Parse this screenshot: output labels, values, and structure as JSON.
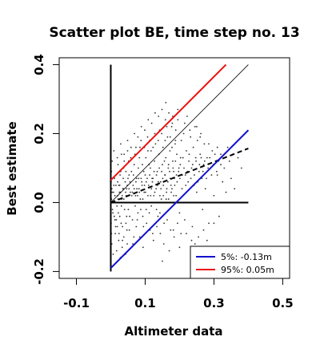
{
  "chart_data": {
    "type": "scatter",
    "title": "Scatter plot BE, time step no. 13",
    "xlabel": "Altimeter data",
    "ylabel": "Best estimate",
    "xlim": [
      -0.15,
      0.52
    ],
    "ylim": [
      -0.22,
      0.42
    ],
    "xticks": [
      -0.1,
      0.1,
      0.3,
      0.5
    ],
    "xtick_labels": [
      "-0.1",
      "0.1",
      "0.3",
      "0.5"
    ],
    "yticks": [
      -0.2,
      0.0,
      0.2,
      0.4
    ],
    "ytick_labels": [
      "-0.2",
      "0.0",
      "0.2",
      "0.4"
    ],
    "lines": [
      {
        "id": "vertical-axis-line",
        "color": "#000000",
        "dash": "solid",
        "x": [
          0.0,
          0.0
        ],
        "y": [
          -0.2,
          0.4
        ]
      },
      {
        "id": "horizontal-zero-line",
        "color": "#000000",
        "dash": "solid",
        "x": [
          0.0,
          0.4
        ],
        "y": [
          0.0,
          0.0
        ]
      },
      {
        "id": "identity-line",
        "color": "#000000",
        "dash": "solid",
        "thin": true,
        "x": [
          0.0,
          0.4
        ],
        "y": [
          0.0,
          0.4
        ]
      },
      {
        "id": "regression-line",
        "color": "#000000",
        "dash": "dashed",
        "x": [
          0.0,
          0.4
        ],
        "y": [
          0.0,
          0.157
        ]
      },
      {
        "id": "percentile-95-line",
        "color": "#ee1111",
        "dash": "solid",
        "x": [
          0.0,
          0.335
        ],
        "y": [
          0.065,
          0.4
        ]
      },
      {
        "id": "percentile-5-line",
        "color": "#1111cc",
        "dash": "solid",
        "x": [
          0.0,
          0.4
        ],
        "y": [
          -0.19,
          0.21
        ]
      }
    ],
    "legend": {
      "position": "bottom-right",
      "entries": [
        {
          "label": "5%: -0.13m",
          "color": "#1111cc"
        },
        {
          "label": "95%:  0.05m",
          "color": "#ee1111"
        }
      ]
    },
    "points": [
      [
        0.002,
        0.01
      ],
      [
        0.005,
        -0.02
      ],
      [
        0.008,
        0.03
      ],
      [
        0.003,
        0.04
      ],
      [
        0.01,
        -0.04
      ],
      [
        0.012,
        0.02
      ],
      [
        0.015,
        0.05
      ],
      [
        0.018,
        -0.01
      ],
      [
        0.02,
        0.06
      ],
      [
        0.022,
        -0.03
      ],
      [
        0.025,
        0.03
      ],
      [
        0.027,
        0.08
      ],
      [
        0.03,
        -0.06
      ],
      [
        0.032,
        0.01
      ],
      [
        0.035,
        0.04
      ],
      [
        0.037,
        0.1
      ],
      [
        0.04,
        -0.02
      ],
      [
        0.042,
        0.06
      ],
      [
        0.045,
        0.02
      ],
      [
        0.047,
        -0.08
      ],
      [
        0.05,
        0.07
      ],
      [
        0.052,
        0.12
      ],
      [
        0.055,
        -0.04
      ],
      [
        0.057,
        0.03
      ],
      [
        0.06,
        0.09
      ],
      [
        0.062,
        0.0
      ],
      [
        0.065,
        0.05
      ],
      [
        0.067,
        -0.1
      ],
      [
        0.07,
        0.14
      ],
      [
        0.072,
        0.02
      ],
      [
        0.075,
        0.07
      ],
      [
        0.077,
        -0.05
      ],
      [
        0.08,
        0.1
      ],
      [
        0.082,
        0.04
      ],
      [
        0.085,
        0.16
      ],
      [
        0.087,
        -0.02
      ],
      [
        0.09,
        0.06
      ],
      [
        0.092,
        0.11
      ],
      [
        0.095,
        -0.07
      ],
      [
        0.097,
        0.03
      ],
      [
        0.1,
        0.08
      ],
      [
        0.102,
        0.13
      ],
      [
        0.105,
        0.0
      ],
      [
        0.107,
        0.19
      ],
      [
        0.11,
        0.05
      ],
      [
        0.112,
        -0.03
      ],
      [
        0.115,
        0.1
      ],
      [
        0.117,
        0.15
      ],
      [
        0.12,
        0.07
      ],
      [
        0.122,
        -0.09
      ],
      [
        0.125,
        0.02
      ],
      [
        0.127,
        0.12
      ],
      [
        0.13,
        0.17
      ],
      [
        0.132,
        0.04
      ],
      [
        0.135,
        0.09
      ],
      [
        0.137,
        -0.04
      ],
      [
        0.14,
        0.14
      ],
      [
        0.142,
        0.21
      ],
      [
        0.145,
        0.06
      ],
      [
        0.147,
        0.01
      ],
      [
        0.15,
        0.11
      ],
      [
        0.152,
        0.16
      ],
      [
        0.155,
        -0.06
      ],
      [
        0.157,
        0.08
      ],
      [
        0.16,
        0.13
      ],
      [
        0.162,
        0.03
      ],
      [
        0.165,
        0.19
      ],
      [
        0.167,
        0.1
      ],
      [
        0.17,
        -0.02
      ],
      [
        0.172,
        0.15
      ],
      [
        0.175,
        0.05
      ],
      [
        0.177,
        0.22
      ],
      [
        0.18,
        0.12
      ],
      [
        0.182,
        -0.08
      ],
      [
        0.185,
        0.07
      ],
      [
        0.187,
        0.17
      ],
      [
        0.19,
        0.02
      ],
      [
        0.192,
        0.14
      ],
      [
        0.195,
        0.24
      ],
      [
        0.197,
        0.09
      ],
      [
        0.2,
        -0.03
      ],
      [
        0.202,
        0.11
      ],
      [
        0.205,
        0.18
      ],
      [
        0.207,
        0.04
      ],
      [
        0.21,
        0.13
      ],
      [
        0.212,
        0.2
      ],
      [
        0.215,
        -0.05
      ],
      [
        0.217,
        0.08
      ],
      [
        0.22,
        0.15
      ],
      [
        0.222,
        0.25
      ],
      [
        0.225,
        0.06
      ],
      [
        0.227,
        0.12
      ],
      [
        0.23,
        0.0
      ],
      [
        0.232,
        0.19
      ],
      [
        0.235,
        0.1
      ],
      [
        0.237,
        -0.07
      ],
      [
        0.24,
        0.16
      ],
      [
        0.242,
        0.05
      ],
      [
        0.245,
        0.22
      ],
      [
        0.247,
        0.13
      ],
      [
        0.25,
        0.03
      ],
      [
        0.252,
        0.18
      ],
      [
        0.255,
        -0.1
      ],
      [
        0.257,
        0.09
      ],
      [
        0.26,
        0.14
      ],
      [
        0.262,
        0.2
      ],
      [
        0.265,
        0.07
      ],
      [
        0.267,
        -0.02
      ],
      [
        0.27,
        0.11
      ],
      [
        0.272,
        0.17
      ],
      [
        0.275,
        0.04
      ],
      [
        0.28,
        0.13
      ],
      [
        0.285,
        -0.06
      ],
      [
        0.29,
        0.1
      ],
      [
        0.295,
        0.15
      ],
      [
        0.3,
        0.02
      ],
      [
        0.305,
        0.12
      ],
      [
        0.31,
        0.08
      ],
      [
        0.315,
        -0.04
      ],
      [
        0.32,
        0.14
      ],
      [
        0.325,
        0.06
      ],
      [
        0.33,
        0.1
      ],
      [
        0.335,
        0.03
      ],
      [
        0.34,
        0.16
      ],
      [
        0.345,
        0.12
      ],
      [
        0.35,
        0.07
      ],
      [
        0.355,
        0.14
      ],
      [
        0.36,
        0.04
      ],
      [
        0.37,
        0.13
      ],
      [
        0.38,
        0.1
      ],
      [
        0.006,
        0.0
      ],
      [
        0.011,
        0.07
      ],
      [
        0.016,
        -0.05
      ],
      [
        0.021,
        0.01
      ],
      [
        0.026,
        0.05
      ],
      [
        0.031,
        -0.01
      ],
      [
        0.036,
        0.07
      ],
      [
        0.041,
        0.0
      ],
      [
        0.046,
        0.04
      ],
      [
        0.051,
        -0.02
      ],
      [
        0.056,
        0.06
      ],
      [
        0.061,
        0.02
      ],
      [
        0.066,
        0.08
      ],
      [
        0.071,
        -0.01
      ],
      [
        0.076,
        0.04
      ],
      [
        0.081,
        0.07
      ],
      [
        0.086,
        0.01
      ],
      [
        0.091,
        0.05
      ],
      [
        0.096,
        0.09
      ],
      [
        0.101,
        0.03
      ],
      [
        0.106,
        0.07
      ],
      [
        0.111,
        0.11
      ],
      [
        0.116,
        0.02
      ],
      [
        0.121,
        0.06
      ],
      [
        0.126,
        0.09
      ],
      [
        0.131,
        0.0
      ],
      [
        0.136,
        0.05
      ],
      [
        0.141,
        0.1
      ],
      [
        0.146,
        0.04
      ],
      [
        0.151,
        0.07
      ],
      [
        0.156,
        0.12
      ],
      [
        0.161,
        0.01
      ],
      [
        0.166,
        0.06
      ],
      [
        0.171,
        0.09
      ],
      [
        0.176,
        0.03
      ],
      [
        0.181,
        0.1
      ],
      [
        0.186,
        0.05
      ],
      [
        0.191,
        0.08
      ],
      [
        0.196,
        0.0
      ],
      [
        0.201,
        0.07
      ],
      [
        0.014,
        -0.07
      ],
      [
        0.024,
        -0.09
      ],
      [
        0.034,
        -0.11
      ],
      [
        0.044,
        -0.06
      ],
      [
        0.054,
        -0.08
      ],
      [
        0.064,
        -0.12
      ],
      [
        0.074,
        -0.07
      ],
      [
        0.084,
        -0.1
      ],
      [
        0.094,
        -0.13
      ],
      [
        0.104,
        -0.06
      ],
      [
        0.114,
        -0.08
      ],
      [
        0.124,
        -0.11
      ],
      [
        0.134,
        -0.07
      ],
      [
        0.144,
        -0.09
      ],
      [
        0.154,
        -0.12
      ],
      [
        0.164,
        -0.05
      ],
      [
        0.174,
        -0.08
      ],
      [
        0.184,
        -0.1
      ],
      [
        0.194,
        -0.06
      ],
      [
        0.204,
        -0.09
      ],
      [
        0.004,
        0.12
      ],
      [
        0.009,
        0.15
      ],
      [
        0.019,
        0.13
      ],
      [
        0.029,
        0.17
      ],
      [
        0.039,
        0.14
      ],
      [
        0.049,
        0.18
      ],
      [
        0.059,
        0.16
      ],
      [
        0.069,
        0.2
      ],
      [
        0.079,
        0.19
      ],
      [
        0.089,
        0.22
      ],
      [
        0.099,
        0.21
      ],
      [
        0.109,
        0.24
      ],
      [
        0.119,
        0.23
      ],
      [
        0.129,
        0.26
      ],
      [
        0.139,
        0.25
      ],
      [
        0.149,
        0.27
      ],
      [
        0.159,
        0.24
      ],
      [
        0.169,
        0.26
      ],
      [
        0.179,
        0.23
      ],
      [
        0.189,
        0.21
      ],
      [
        0.003,
        -0.12
      ],
      [
        0.007,
        -0.15
      ],
      [
        0.013,
        -0.09
      ],
      [
        0.017,
        -0.14
      ],
      [
        0.023,
        -0.11
      ],
      [
        0.028,
        -0.16
      ],
      [
        0.033,
        -0.13
      ],
      [
        0.038,
        -0.1
      ],
      [
        0.043,
        -0.15
      ],
      [
        0.048,
        -0.12
      ],
      [
        0.02,
        0.02
      ],
      [
        0.024,
        0.0
      ],
      [
        0.028,
        0.03
      ],
      [
        0.033,
        0.02
      ],
      [
        0.038,
        0.01
      ],
      [
        0.043,
        0.03
      ],
      [
        0.048,
        0.05
      ],
      [
        0.053,
        0.04
      ],
      [
        0.058,
        0.0
      ],
      [
        0.063,
        0.03
      ],
      [
        0.068,
        0.04
      ],
      [
        0.073,
        0.06
      ],
      [
        0.078,
        0.02
      ],
      [
        0.083,
        0.03
      ],
      [
        0.088,
        0.07
      ],
      [
        0.093,
        0.01
      ],
      [
        0.098,
        0.05
      ],
      [
        0.103,
        0.06
      ],
      [
        0.108,
        0.02
      ],
      [
        0.113,
        0.08
      ],
      [
        0.118,
        0.04
      ],
      [
        0.123,
        0.07
      ],
      [
        0.128,
        0.03
      ],
      [
        0.133,
        0.08
      ],
      [
        0.138,
        0.06
      ],
      [
        0.143,
        0.02
      ],
      [
        0.148,
        0.09
      ],
      [
        0.153,
        0.05
      ],
      [
        0.158,
        0.08
      ],
      [
        0.163,
        0.04
      ],
      [
        0.168,
        0.11
      ],
      [
        0.173,
        0.07
      ],
      [
        0.178,
        0.04
      ],
      [
        0.183,
        0.09
      ],
      [
        0.188,
        0.12
      ],
      [
        0.193,
        0.06
      ],
      [
        0.198,
        0.1
      ],
      [
        0.203,
        0.13
      ],
      [
        0.208,
        0.08
      ],
      [
        0.213,
        0.1
      ],
      [
        0.218,
        0.05
      ],
      [
        0.223,
        0.09
      ],
      [
        0.228,
        0.14
      ],
      [
        0.233,
        0.07
      ],
      [
        0.238,
        0.11
      ],
      [
        0.243,
        0.08
      ],
      [
        0.248,
        0.12
      ],
      [
        0.253,
        0.06
      ],
      [
        0.258,
        0.11
      ],
      [
        0.263,
        0.13
      ],
      [
        0.268,
        0.09
      ],
      [
        0.273,
        0.12
      ],
      [
        0.278,
        0.07
      ],
      [
        0.283,
        0.1
      ],
      [
        0.288,
        0.13
      ],
      [
        0.293,
        0.08
      ],
      [
        0.298,
        0.11
      ],
      [
        0.303,
        0.14
      ],
      [
        0.308,
        0.09
      ],
      [
        0.313,
        0.12
      ],
      [
        0.001,
        0.06
      ],
      [
        0.001,
        -0.06
      ],
      [
        0.002,
        0.09
      ],
      [
        0.002,
        -0.09
      ],
      [
        0.004,
        0.03
      ],
      [
        0.006,
        -0.03
      ],
      [
        0.009,
        0.05
      ],
      [
        0.012,
        -0.05
      ],
      [
        0.015,
        0.08
      ],
      [
        0.017,
        0.0
      ],
      [
        0.019,
        -0.07
      ],
      [
        0.021,
        0.11
      ],
      [
        0.023,
        0.05
      ],
      [
        0.026,
        -0.04
      ],
      [
        0.029,
        0.09
      ],
      [
        0.031,
        0.14
      ],
      [
        0.034,
        -0.07
      ],
      [
        0.037,
        0.04
      ],
      [
        0.039,
        0.12
      ],
      [
        0.044,
        0.09
      ],
      [
        0.046,
        -0.04
      ],
      [
        0.049,
        0.15
      ],
      [
        0.053,
        0.08
      ],
      [
        0.058,
        0.13
      ],
      [
        0.063,
        -0.05
      ],
      [
        0.068,
        0.11
      ],
      [
        0.073,
        0.16
      ],
      [
        0.079,
        -0.03
      ],
      [
        0.083,
        0.13
      ],
      [
        0.088,
        0.18
      ],
      [
        0.093,
        -0.04
      ],
      [
        0.098,
        0.16
      ],
      [
        0.103,
        -0.02
      ],
      [
        0.108,
        0.15
      ],
      [
        0.113,
        0.18
      ],
      [
        0.118,
        -0.01
      ],
      [
        0.123,
        0.16
      ],
      [
        0.128,
        0.2
      ],
      [
        0.133,
        -0.02
      ],
      [
        0.138,
        0.18
      ],
      [
        0.143,
        -0.03
      ],
      [
        0.148,
        0.2
      ],
      [
        0.153,
        0.02
      ],
      [
        0.158,
        0.18
      ],
      [
        0.163,
        0.22
      ],
      [
        0.168,
        0.01
      ],
      [
        0.173,
        0.19
      ],
      [
        0.178,
        0.16
      ],
      [
        0.183,
        0.02
      ],
      [
        0.188,
        0.18
      ],
      [
        0.245,
        -0.12
      ],
      [
        0.22,
        -0.09
      ],
      [
        0.27,
        -0.08
      ],
      [
        0.3,
        -0.06
      ],
      [
        0.26,
        -0.13
      ],
      [
        0.17,
        -0.14
      ],
      [
        0.15,
        -0.17
      ],
      [
        0.2,
        -0.13
      ],
      [
        0.235,
        -0.11
      ],
      [
        0.28,
        -0.11
      ],
      [
        0.16,
        0.29
      ],
      [
        0.18,
        0.25
      ],
      [
        0.195,
        0.27
      ],
      [
        0.215,
        0.23
      ],
      [
        0.23,
        0.21
      ],
      [
        0.25,
        0.22
      ],
      [
        0.26,
        0.19
      ],
      [
        0.285,
        0.17
      ],
      [
        0.31,
        0.16
      ],
      [
        0.32,
        0.11
      ]
    ]
  }
}
